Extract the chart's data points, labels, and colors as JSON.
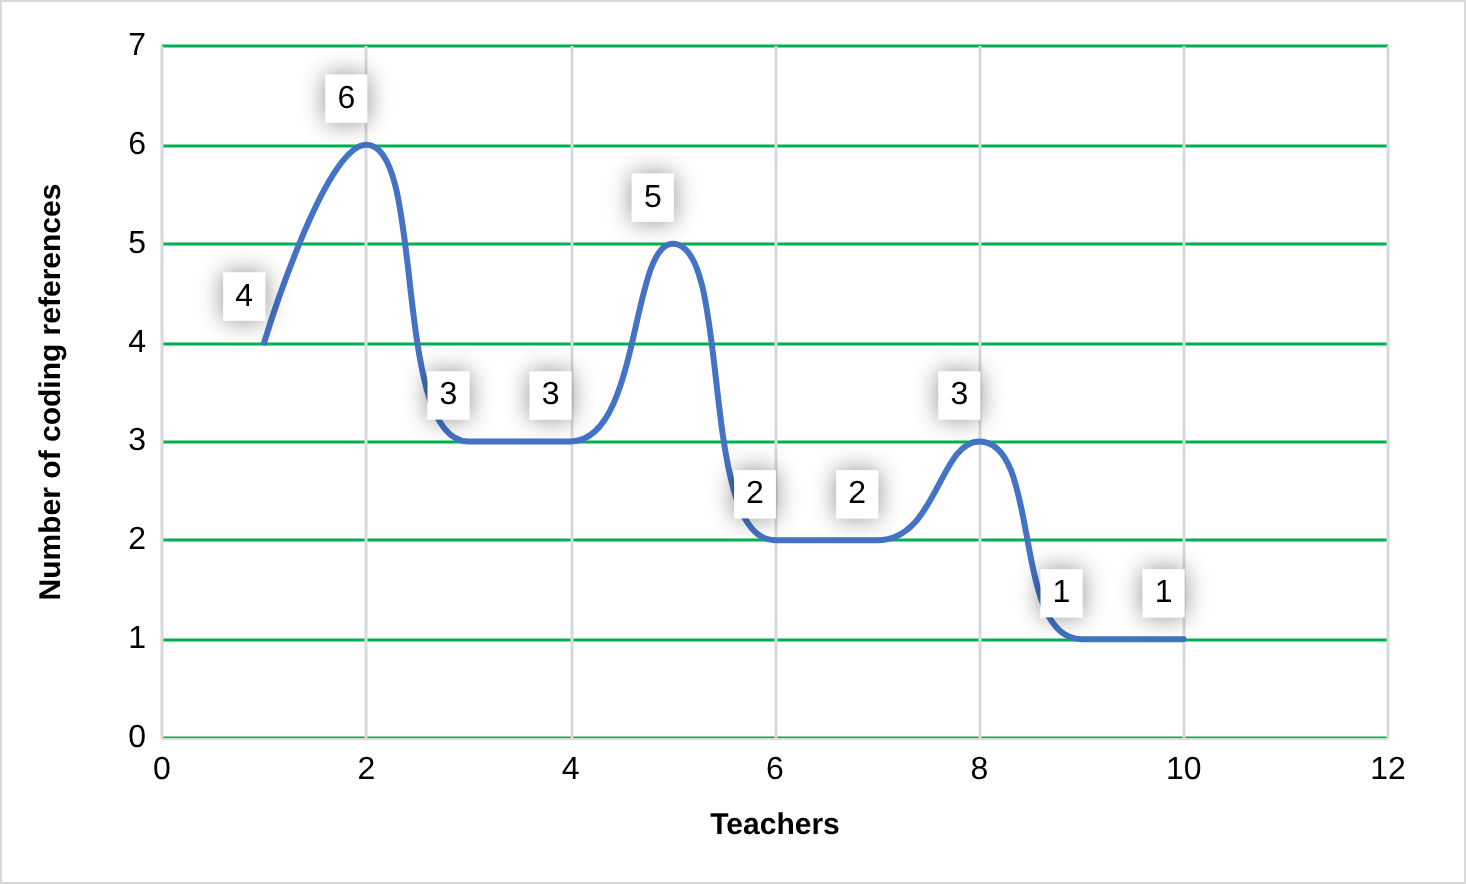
{
  "chart_data": {
    "type": "line",
    "xlabel": "Teachers",
    "ylabel": "Number of coding references",
    "x": [
      1,
      2,
      3,
      4,
      5,
      6,
      7,
      8,
      9,
      10
    ],
    "series": [
      {
        "color": "#4472c4",
        "values": [
          4,
          6,
          3,
          3,
          5,
          2,
          2,
          3,
          1,
          1
        ]
      }
    ],
    "xlim": [
      0,
      12
    ],
    "xticks": [
      0,
      2,
      4,
      6,
      8,
      10,
      12
    ],
    "ylim": [
      0,
      7
    ],
    "yticks": [
      0,
      1,
      2,
      3,
      4,
      5,
      6,
      7
    ],
    "grid": true,
    "marker": "none",
    "line_style": "solid",
    "data_labels": true
  }
}
